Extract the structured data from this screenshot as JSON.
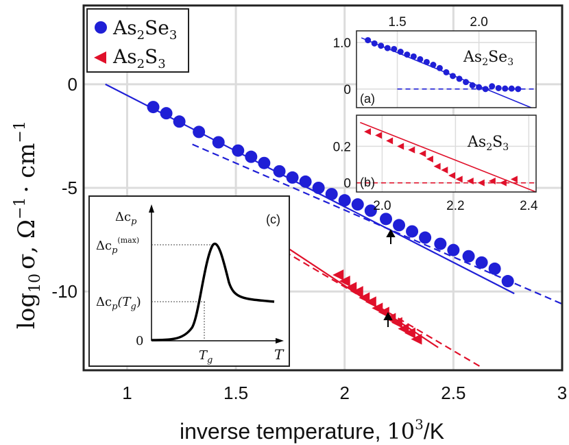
{
  "colors": {
    "se": "#1f1fd6",
    "s": "#e0102a",
    "grid": "#dcdcdc",
    "frame": "#222222"
  },
  "main": {
    "ylabel_prefix": "log",
    "ylabel_sub": "10",
    "ylabel_rest": "σ, Ω",
    "ylabel_exp": "−1",
    "ylabel_dot": "· cm",
    "ylabel_exp2": "−1",
    "xlabel": "inverse temperature, ",
    "xlabel_math": "10",
    "xlabel_exp": "3",
    "xlabel_unit": "/K",
    "xticks": [
      "1",
      "1.5",
      "2",
      "2.5",
      "3"
    ],
    "yticks": [
      "0",
      "-5",
      "-10"
    ],
    "legend": [
      {
        "main": "As",
        "sub1": "2",
        "mid": "Se",
        "sub2": "3"
      },
      {
        "main": "As",
        "sub1": "2",
        "mid": "S",
        "sub2": "3"
      }
    ]
  },
  "inset_a": {
    "label": "(a)",
    "name_main": "As",
    "name_sub1": "2",
    "name_mid": "Se",
    "name_sub2": "3",
    "top_ticks": [
      "1.5",
      "2.0"
    ],
    "yticks": [
      "1.0",
      "0"
    ]
  },
  "inset_b": {
    "label": "(b)",
    "name_main": "As",
    "name_sub1": "2",
    "name_mid": "S",
    "name_sub2": "3",
    "xticks": [
      "2.0",
      "2.2",
      "2.4"
    ],
    "yticks": [
      "0.2",
      "0"
    ]
  },
  "inset_c": {
    "label": "(c)",
    "y_axis": "Δc",
    "y_axis_sub": "p",
    "max_label": "Δc",
    "max_sub": "p",
    "max_sup": "(max)",
    "tg_label": "Δc",
    "tg_sub": "p",
    "tg_paren": "(T",
    "tg_paren_sub": "g",
    "tg_close": ")",
    "zero": "0",
    "x_tg": "T",
    "x_tg_sub": "g",
    "x_axis": "T"
  },
  "chart_data": [
    {
      "type": "scatter",
      "xlim": [
        0.8,
        3.0
      ],
      "ylim": [
        -13.8,
        3.8
      ],
      "xlabel": "inverse temperature, 10^3/K",
      "ylabel": "log10 σ, Ω^-1 · cm^-1",
      "grid": true,
      "legend_position": "top-left",
      "series": [
        {
          "name": "As2Se3",
          "marker": "circle",
          "x": [
            1.12,
            1.18,
            1.24,
            1.33,
            1.42,
            1.51,
            1.57,
            1.63,
            1.7,
            1.76,
            1.82,
            1.88,
            1.94,
            2.0,
            2.06,
            2.12,
            2.19,
            2.25,
            2.31,
            2.37,
            2.44,
            2.5,
            2.57,
            2.63,
            2.69,
            2.75
          ],
          "y": [
            -1.1,
            -1.4,
            -1.8,
            -2.3,
            -2.8,
            -3.2,
            -3.5,
            -3.8,
            -4.2,
            -4.5,
            -4.7,
            -5.0,
            -5.3,
            -5.6,
            -5.8,
            -6.1,
            -6.5,
            -6.8,
            -7.1,
            -7.4,
            -7.7,
            -8.0,
            -8.3,
            -8.6,
            -8.9,
            -9.5
          ]
        },
        {
          "name": "As2S3",
          "marker": "triangle-left",
          "x": [
            1.97,
            2.0,
            2.03,
            2.06,
            2.09,
            2.12,
            2.15,
            2.18,
            2.21,
            2.24,
            2.27,
            2.3,
            2.33
          ],
          "y": [
            -9.2,
            -9.5,
            -9.8,
            -10.0,
            -10.3,
            -10.5,
            -10.8,
            -11.0,
            -11.3,
            -11.5,
            -11.8,
            -12.0,
            -12.3
          ]
        }
      ],
      "fit_lines": [
        {
          "series": "As2Se3",
          "style": "solid",
          "x": [
            0.9,
            2.78
          ],
          "y": [
            0.0,
            -10.1
          ]
        },
        {
          "series": "As2Se3",
          "style": "dashed",
          "x": [
            1.3,
            3.0
          ],
          "y": [
            -2.9,
            -10.6
          ]
        },
        {
          "series": "As2S3",
          "style": "solid",
          "x": [
            1.68,
            2.43
          ],
          "y": [
            -7.5,
            -12.7
          ]
        },
        {
          "series": "As2S3",
          "style": "dashed",
          "x": [
            1.68,
            2.62
          ],
          "y": [
            -7.8,
            -13.6
          ]
        }
      ],
      "arrows_at_x": [
        2.2,
        2.2
      ]
    },
    {
      "type": "scatter",
      "name": "inset (a)",
      "xlim": [
        1.25,
        2.35
      ],
      "ylim": [
        -0.4,
        1.25
      ],
      "top_axis_ticks": [
        1.5,
        2.0
      ],
      "yticks": [
        0,
        1.0
      ],
      "series": [
        {
          "name": "As2Se3",
          "x": [
            1.32,
            1.36,
            1.4,
            1.44,
            1.48,
            1.52,
            1.56,
            1.6,
            1.64,
            1.68,
            1.72,
            1.76,
            1.8,
            1.84,
            1.88,
            1.92,
            1.96,
            2.0,
            2.04,
            2.08,
            2.12,
            2.16,
            2.2,
            2.24
          ],
          "y": [
            1.05,
            0.98,
            0.93,
            0.88,
            0.86,
            0.8,
            0.74,
            0.7,
            0.64,
            0.58,
            0.52,
            0.45,
            0.36,
            0.28,
            0.22,
            0.15,
            0.08,
            0.04,
            0.0,
            0.06,
            0.02,
            0.01,
            0.01,
            0.0
          ]
        }
      ],
      "fit_lines": [
        {
          "style": "solid",
          "x": [
            1.28,
            2.32
          ],
          "y": [
            1.1,
            -0.4
          ]
        },
        {
          "style": "dashed",
          "x": [
            1.5,
            2.35
          ],
          "y": [
            0,
            0
          ]
        }
      ]
    },
    {
      "type": "scatter",
      "name": "inset (b)",
      "xlim": [
        1.93,
        2.42
      ],
      "ylim": [
        -0.05,
        0.37
      ],
      "xticks": [
        2.0,
        2.2,
        2.4
      ],
      "yticks": [
        0,
        0.2
      ],
      "series": [
        {
          "name": "As2S3",
          "x": [
            1.96,
            1.99,
            2.02,
            2.05,
            2.08,
            2.11,
            2.13,
            2.15,
            2.17,
            2.19,
            2.21,
            2.24,
            2.27,
            2.3,
            2.33,
            2.36
          ],
          "y": [
            0.28,
            0.26,
            0.23,
            0.2,
            0.18,
            0.16,
            0.13,
            0.09,
            0.07,
            0.04,
            0.02,
            0.01,
            0.0,
            0.01,
            0.0,
            0.02
          ]
        }
      ],
      "fit_lines": [
        {
          "style": "solid",
          "x": [
            1.94,
            2.42
          ],
          "y": [
            0.33,
            -0.05
          ]
        },
        {
          "style": "dashed",
          "x": [
            1.93,
            2.42
          ],
          "y": [
            0.0,
            0.0
          ]
        }
      ]
    },
    {
      "type": "line",
      "name": "inset (c)",
      "description_points": {
        "x": [
          0.0,
          0.3,
          0.5,
          0.62,
          0.72,
          0.78,
          0.84,
          0.9,
          1.0,
          1.2,
          1.5
        ],
        "y": [
          0.0,
          0.02,
          0.15,
          0.45,
          0.86,
          1.0,
          0.8,
          0.6,
          0.52,
          0.5,
          0.49
        ]
      },
      "marked_levels": [
        "Δc_p(max)",
        "Δc_p(T_g)"
      ],
      "marked_x": [
        "T_g"
      ]
    }
  ]
}
